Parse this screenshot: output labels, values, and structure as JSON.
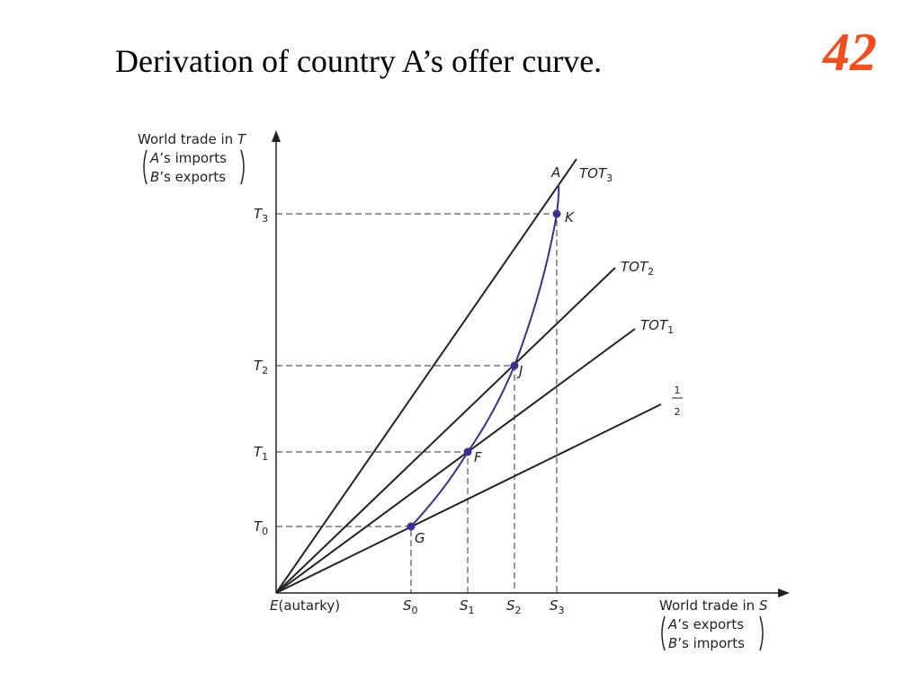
{
  "slide": {
    "title": "Derivation of country A’s offer curve.",
    "number": "42"
  },
  "diagram": {
    "y_axis": {
      "label": "World trade in",
      "variable": "T",
      "line1": {
        "italic": "A",
        "text": "’s imports"
      },
      "line2": {
        "italic": "B",
        "text": "’s exports"
      }
    },
    "x_axis": {
      "label": "World trade in",
      "variable": "S",
      "line1": {
        "italic": "A",
        "text": "’s exports"
      },
      "line2": {
        "italic": "B",
        "text": "’s imports"
      }
    },
    "origin": {
      "italic": "E",
      "text": "(autarky)"
    },
    "y_ticks": [
      {
        "main": "T",
        "sub": "3"
      },
      {
        "main": "T",
        "sub": "2"
      },
      {
        "main": "T",
        "sub": "1"
      },
      {
        "main": "T",
        "sub": "0"
      }
    ],
    "x_ticks": [
      {
        "main": "S",
        "sub": "0"
      },
      {
        "main": "S",
        "sub": "1"
      },
      {
        "main": "S",
        "sub": "2"
      },
      {
        "main": "S",
        "sub": "3"
      }
    ],
    "lines": [
      {
        "main": "TOT",
        "sub": "3"
      },
      {
        "main": "TOT",
        "sub": "2"
      },
      {
        "main": "TOT",
        "sub": "1"
      },
      {
        "numerator": "1",
        "denominator": "2"
      }
    ],
    "curve_label": "A",
    "points": [
      "G",
      "F",
      "J",
      "K"
    ]
  }
}
